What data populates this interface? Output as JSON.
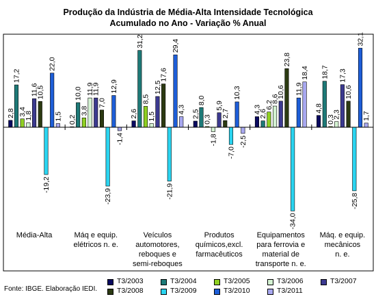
{
  "chart_data": {
    "type": "bar",
    "title_lines": [
      "Produção da Indústria de Média-Alta Intensidade Tecnológica",
      "Acumulado no Ano - Variação % Anual"
    ],
    "categories": [
      [
        "Média-Alta"
      ],
      [
        "Máq e equip.",
        "elétricos n. e."
      ],
      [
        "Veículos",
        "automotores,",
        "reboques e",
        "semi-reboques"
      ],
      [
        "Produtos",
        "químicos,excl.",
        "farmacêuticos"
      ],
      [
        "Equipamentos",
        "para ferrovia e",
        "material de",
        "transporte n. e."
      ],
      [
        "Máq. e equip.",
        "mecânicos",
        "n. e."
      ]
    ],
    "series": [
      {
        "name": "T3/2003",
        "color": "#0a0a60",
        "values": [
          2.8,
          0.2,
          2.6,
          2.5,
          4.3,
          4.8
        ]
      },
      {
        "name": "T3/2004",
        "color": "#1e7a78",
        "values": [
          17.2,
          10.0,
          31.2,
          8.0,
          2.6,
          18.7
        ]
      },
      {
        "name": "T3/2005",
        "color": "#8fd022",
        "values": [
          3.4,
          3.8,
          8.5,
          0.3,
          6.2,
          0.3
        ]
      },
      {
        "name": "T3/2006",
        "color": "#d4f2d2",
        "values": [
          1.8,
          11.9,
          1.5,
          -1.8,
          8.6,
          2.3
        ]
      },
      {
        "name": "T3/2007",
        "color": "#3c3a90",
        "values": [
          11.6,
          11.9,
          12.5,
          5.9,
          10.6,
          17.3
        ]
      },
      {
        "name": "T3/2008",
        "color": "#2c3a12",
        "values": [
          10.5,
          7.0,
          17.6,
          2.7,
          23.8,
          10.6
        ]
      },
      {
        "name": "T3/2009",
        "color": "#2ad4f0",
        "values": [
          -19.2,
          -23.9,
          -21.9,
          -7.0,
          -34.0,
          -25.8
        ]
      },
      {
        "name": "T3/2010",
        "color": "#1e5ed8",
        "values": [
          22.0,
          12.9,
          29.4,
          10.3,
          11.9,
          32.1
        ]
      },
      {
        "name": "T3/2011",
        "color": "#a8a8f0",
        "values": [
          1.5,
          -1.4,
          4.3,
          -2.5,
          18.4,
          1.7
        ]
      }
    ],
    "value_labels": [
      [
        "2,8",
        "17,2",
        "3,4",
        "1,8",
        "11,6",
        "10,5",
        "-19,2",
        "22,0",
        "1,5"
      ],
      [
        "0,2",
        "10,0",
        "3,8",
        "11,9",
        "11,9",
        "7,0",
        "-23,9",
        "12,9",
        "-1,4"
      ],
      [
        "2,6",
        "31,2",
        "8,5",
        "1,5",
        "12,5",
        "17,6",
        "-21,9",
        "29,4",
        "4,3"
      ],
      [
        "2,5",
        "8,0",
        "0,3",
        "-1,8",
        "5,9",
        "2,7",
        "-7,0",
        "10,3",
        "-2,5"
      ],
      [
        "4,3",
        "2,6",
        "6,2",
        "8,6",
        "10,6",
        "23,8",
        "-34,0",
        "11,9",
        "18,4"
      ],
      [
        "4,8",
        "18,7",
        "0,3",
        "2,3",
        "17,3",
        "10,6",
        "-25,8",
        "32,1",
        "1,7"
      ]
    ],
    "ylim": [
      -36,
      36
    ],
    "legend_position": "bottom",
    "grid": false
  },
  "source_text": "Fonte: IBGE. Elaboração IEDI."
}
